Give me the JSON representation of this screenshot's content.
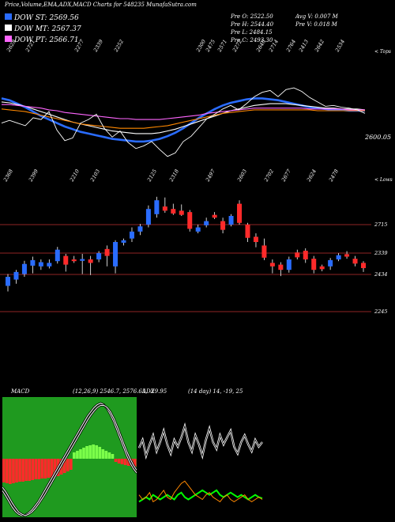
{
  "header": {
    "title": "Price,Volume,EMA,ADX,MACD Charts for 548235 MunafaSutra.com"
  },
  "legend": [
    {
      "label": "DOW ST: 2569.56",
      "color": "#2a6cff"
    },
    {
      "label": "DOW MT: 2567.37",
      "color": "#ffffff"
    },
    {
      "label": "DOW PT: 2566.71",
      "color": "#ff66ff"
    }
  ],
  "ohlc": {
    "open": "Pre  O: 2522.50",
    "high": "Pre  H: 2544.40",
    "low": "Pre  L: 2484.15",
    "close": "Pre  C: 2493.30",
    "avg_volume": "Avg V: 0.007  M",
    "prev_volume": "Pre  V: 0.018  M"
  },
  "labels": {
    "ema_last": "2600.05",
    "tops_marker": "< Tops",
    "lows_marker": "< Lows",
    "macd_title": "MACD",
    "macd_values": "(12,26,9) 2546.7,  2576.65, -29.95",
    "adx_title": "ADX",
    "adx_values": "(14  day) 14, -19,  25"
  },
  "chart_data": [
    {
      "type": "line",
      "name": "ema-panel",
      "top_labels": [
        "2628",
        "2721",
        "2277",
        "2339",
        "2252",
        "2300",
        "2475",
        "2571",
        "2272",
        "2640",
        "2714",
        "2764",
        "2413",
        "2642",
        "2534"
      ],
      "bottom_labels": [
        "2368",
        "2399",
        "2210",
        "2103",
        "2125",
        "2318",
        "2497",
        "2603",
        "2702",
        "2677",
        "2624",
        "2478"
      ],
      "price_line": [
        2590,
        2593,
        2590,
        2587,
        2596,
        2594,
        2603,
        2582,
        2570,
        2573,
        2590,
        2594,
        2600,
        2584,
        2574,
        2581,
        2568,
        2561,
        2564,
        2569,
        2560,
        2552,
        2556,
        2569,
        2575,
        2585,
        2595,
        2600,
        2606,
        2610,
        2605,
        2612,
        2620,
        2625,
        2627,
        2620,
        2628,
        2630,
        2626,
        2619,
        2614,
        2609,
        2610,
        2608,
        2607,
        2605,
        2601
      ],
      "series": [
        {
          "values": [
            2618,
            2616,
            2612,
            2608,
            2603,
            2598,
            2594,
            2590,
            2586,
            2583,
            2580,
            2578,
            2576,
            2574,
            2572,
            2571,
            2570,
            2569,
            2569,
            2570,
            2572,
            2575,
            2579,
            2584,
            2590,
            2596,
            2601,
            2606,
            2610,
            2613,
            2615,
            2617,
            2618,
            2618,
            2617,
            2616,
            2614,
            2612,
            2610,
            2608,
            2607,
            2606,
            2605,
            2605,
            2604,
            2604,
            2604
          ],
          "color": "#2a6cff"
        },
        {
          "values": [
            2614,
            2613,
            2611,
            2609,
            2606,
            2603,
            2600,
            2597,
            2594,
            2591,
            2589,
            2587,
            2585,
            2583,
            2581,
            2580,
            2579,
            2578,
            2578,
            2578,
            2579,
            2581,
            2583,
            2586,
            2589,
            2592,
            2595,
            2598,
            2601,
            2604,
            2606,
            2608,
            2610,
            2611,
            2612,
            2612,
            2612,
            2611,
            2610,
            2609,
            2608,
            2607,
            2607,
            2606,
            2606,
            2606,
            2605
          ],
          "color": "#ffffff"
        },
        {
          "values": [
            2611,
            2611,
            2610,
            2609,
            2608,
            2607,
            2605,
            2604,
            2602,
            2601,
            2600,
            2599,
            2598,
            2597,
            2596,
            2595,
            2595,
            2594,
            2594,
            2594,
            2594,
            2595,
            2596,
            2597,
            2598,
            2599,
            2601,
            2602,
            2603,
            2604,
            2605,
            2606,
            2607,
            2607,
            2607,
            2607,
            2607,
            2607,
            2607,
            2606,
            2606,
            2606,
            2606,
            2606,
            2605,
            2605,
            2605
          ],
          "color": "#ff66ff"
        },
        {
          "values": [
            2606,
            2605,
            2604,
            2603,
            2601,
            2599,
            2597,
            2595,
            2593,
            2591,
            2589,
            2588,
            2587,
            2586,
            2585,
            2584,
            2584,
            2584,
            2584,
            2585,
            2586,
            2587,
            2589,
            2591,
            2593,
            2595,
            2597,
            2599,
            2601,
            2602,
            2603,
            2604,
            2605,
            2605,
            2605,
            2605,
            2605,
            2605,
            2605,
            2605,
            2604,
            2604,
            2604,
            2604,
            2604,
            2604,
            2604
          ],
          "color": "#ff8800"
        }
      ]
    },
    {
      "type": "candlestick",
      "name": "price-panel",
      "price_levels": [
        "2715",
        "2339",
        "2434",
        "2245"
      ],
      "candles": [
        {
          "o": 2444,
          "c": 2470,
          "h": 2478,
          "l": 2428
        },
        {
          "o": 2462,
          "c": 2484,
          "h": 2490,
          "l": 2450
        },
        {
          "o": 2478,
          "c": 2507,
          "h": 2516,
          "l": 2470
        },
        {
          "o": 2502,
          "c": 2518,
          "h": 2528,
          "l": 2480
        },
        {
          "o": 2500,
          "c": 2512,
          "h": 2520,
          "l": 2490
        },
        {
          "o": 2500,
          "c": 2510,
          "h": 2520,
          "l": 2494
        },
        {
          "o": 2515,
          "c": 2548,
          "h": 2556,
          "l": 2508
        },
        {
          "o": 2530,
          "c": 2505,
          "h": 2536,
          "l": 2485
        },
        {
          "o": 2520,
          "c": 2515,
          "h": 2530,
          "l": 2510
        },
        {
          "o": 2516,
          "c": 2521,
          "h": 2536,
          "l": 2478
        },
        {
          "o": 2520,
          "c": 2510,
          "h": 2530,
          "l": 2475
        },
        {
          "o": 2520,
          "c": 2538,
          "h": 2544,
          "l": 2512
        },
        {
          "o": 2550,
          "c": 2530,
          "h": 2560,
          "l": 2500
        },
        {
          "o": 2500,
          "c": 2570,
          "h": 2575,
          "l": 2480
        },
        {
          "o": 2568,
          "c": 2575,
          "h": 2580,
          "l": 2560
        },
        {
          "o": 2580,
          "c": 2600,
          "h": 2612,
          "l": 2570
        },
        {
          "o": 2600,
          "c": 2615,
          "h": 2622,
          "l": 2590
        },
        {
          "o": 2620,
          "c": 2665,
          "h": 2675,
          "l": 2612
        },
        {
          "o": 2650,
          "c": 2690,
          "h": 2700,
          "l": 2640
        },
        {
          "o": 2672,
          "c": 2660,
          "h": 2698,
          "l": 2654
        },
        {
          "o": 2665,
          "c": 2652,
          "h": 2680,
          "l": 2648
        },
        {
          "o": 2660,
          "c": 2648,
          "h": 2678,
          "l": 2645
        },
        {
          "o": 2656,
          "c": 2608,
          "h": 2662,
          "l": 2600
        },
        {
          "o": 2600,
          "c": 2612,
          "h": 2620,
          "l": 2595
        },
        {
          "o": 2618,
          "c": 2630,
          "h": 2640,
          "l": 2612
        },
        {
          "o": 2648,
          "c": 2640,
          "h": 2656,
          "l": 2636
        },
        {
          "o": 2630,
          "c": 2605,
          "h": 2640,
          "l": 2595
        },
        {
          "o": 2620,
          "c": 2645,
          "h": 2650,
          "l": 2615
        },
        {
          "o": 2680,
          "c": 2625,
          "h": 2690,
          "l": 2620
        },
        {
          "o": 2620,
          "c": 2582,
          "h": 2625,
          "l": 2570
        },
        {
          "o": 2585,
          "c": 2570,
          "h": 2595,
          "l": 2555
        },
        {
          "o": 2560,
          "c": 2525,
          "h": 2580,
          "l": 2518
        },
        {
          "o": 2510,
          "c": 2500,
          "h": 2520,
          "l": 2480
        },
        {
          "o": 2505,
          "c": 2490,
          "h": 2512,
          "l": 2472
        },
        {
          "o": 2490,
          "c": 2520,
          "h": 2528,
          "l": 2482
        },
        {
          "o": 2540,
          "c": 2526,
          "h": 2548,
          "l": 2520
        },
        {
          "o": 2545,
          "c": 2520,
          "h": 2552,
          "l": 2510
        },
        {
          "o": 2522,
          "c": 2490,
          "h": 2530,
          "l": 2480
        },
        {
          "o": 2500,
          "c": 2492,
          "h": 2505,
          "l": 2486
        },
        {
          "o": 2500,
          "c": 2518,
          "h": 2524,
          "l": 2490
        },
        {
          "o": 2520,
          "c": 2532,
          "h": 2538,
          "l": 2515
        },
        {
          "o": 2535,
          "c": 2528,
          "h": 2544,
          "l": 2522
        },
        {
          "o": 2522,
          "c": 2508,
          "h": 2530,
          "l": 2500
        },
        {
          "o": 2510,
          "c": 2495,
          "h": 2515,
          "l": 2484
        }
      ]
    },
    {
      "type": "line",
      "name": "macd-panel",
      "histogram": [
        -30,
        -31,
        -32,
        -31,
        -30,
        -29,
        -29,
        -28,
        -28,
        -27,
        -26,
        -26,
        -25,
        -25,
        -24,
        -24,
        -23,
        -22,
        -20,
        -18,
        -16,
        -14,
        8,
        10,
        12,
        14,
        16,
        17,
        18,
        17,
        15,
        12,
        10,
        8,
        6,
        -4,
        -6,
        -7,
        -8,
        -9,
        -10,
        -10
      ],
      "series": [
        {
          "values": [
            -45,
            -52,
            -60,
            -68,
            -74,
            -78,
            -80,
            -79,
            -76,
            -72,
            -66,
            -60,
            -52,
            -44,
            -36,
            -28,
            -20,
            -12,
            -4,
            4,
            12,
            20,
            28,
            36,
            44,
            52,
            60,
            66,
            72,
            76,
            78,
            76,
            70,
            62,
            52,
            40,
            28,
            16,
            4,
            -6,
            -14,
            -20
          ],
          "color": "#ffffff"
        },
        {
          "values": [
            -40,
            -46,
            -54,
            -62,
            -69,
            -75,
            -78,
            -80,
            -78,
            -75,
            -70,
            -64,
            -57,
            -50,
            -42,
            -34,
            -26,
            -18,
            -10,
            -2,
            6,
            14,
            22,
            30,
            38,
            46,
            54,
            61,
            67,
            72,
            75,
            75,
            72,
            66,
            57,
            46,
            34,
            22,
            10,
            0,
            -9,
            -16
          ],
          "color": "#ffffff"
        }
      ]
    },
    {
      "type": "line",
      "name": "adx-panel",
      "series": [
        {
          "values": [
            55,
            62,
            48,
            58,
            66,
            52,
            60,
            70,
            58,
            50,
            62,
            56,
            64,
            74,
            60,
            52,
            66,
            58,
            48,
            62,
            72,
            60,
            54,
            66,
            58,
            64,
            70,
            56,
            50,
            60,
            66,
            58,
            52,
            62,
            56,
            60
          ],
          "color": "#ffffff"
        },
        {
          "values": [
            8,
            10,
            12,
            10,
            14,
            12,
            10,
            12,
            14,
            12,
            10,
            14,
            16,
            12,
            10,
            12,
            14,
            16,
            18,
            16,
            14,
            16,
            18,
            14,
            12,
            14,
            16,
            14,
            12,
            14,
            12,
            10,
            12,
            14,
            12,
            11
          ],
          "color": "#00ff00"
        },
        {
          "values": [
            14,
            10,
            12,
            16,
            8,
            10,
            14,
            18,
            12,
            10,
            16,
            20,
            24,
            26,
            22,
            18,
            14,
            12,
            10,
            14,
            16,
            12,
            10,
            8,
            12,
            14,
            10,
            8,
            10,
            12,
            14,
            10,
            8,
            10,
            12,
            10
          ],
          "color": "#ff8800"
        }
      ]
    }
  ]
}
